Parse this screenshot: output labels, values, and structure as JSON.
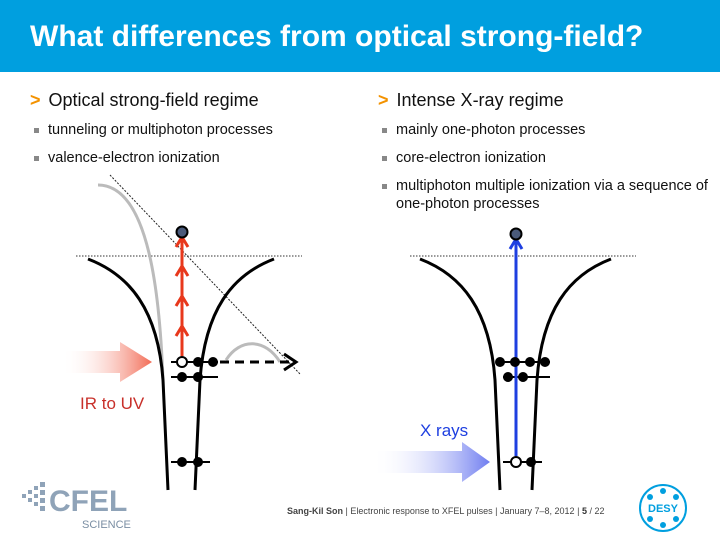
{
  "header": {
    "title": "What differences from optical strong-field?"
  },
  "left": {
    "heading": "Optical strong-field regime",
    "bullets": [
      "tunneling or multiphoton processes",
      "valence-electron ionization"
    ],
    "beam_label": "IR to UV"
  },
  "right": {
    "heading": "Intense X-ray regime",
    "bullets": [
      "mainly one-photon processes",
      "core-electron ionization",
      "multiphoton multiple ionization via a sequence of one-photon processes"
    ],
    "beam_label": "X rays"
  },
  "footer": {
    "author": "Sang-Kil Son",
    "sep1": "|",
    "talk": "Electronic response to XFEL pulses",
    "sep2": "|",
    "date": "January 7–8, 2012",
    "sep3": "|",
    "page": "5",
    "total": "/ 22"
  },
  "logos": {
    "cfel_main": "CFEL",
    "cfel_sub": "SCIENCE",
    "desy": "DESY"
  },
  "colors": {
    "header": "#009fdf",
    "accent_arrow": "#f39200",
    "ir_arrow": "#e8381c",
    "xray_arrow": "#1e3fe0"
  }
}
